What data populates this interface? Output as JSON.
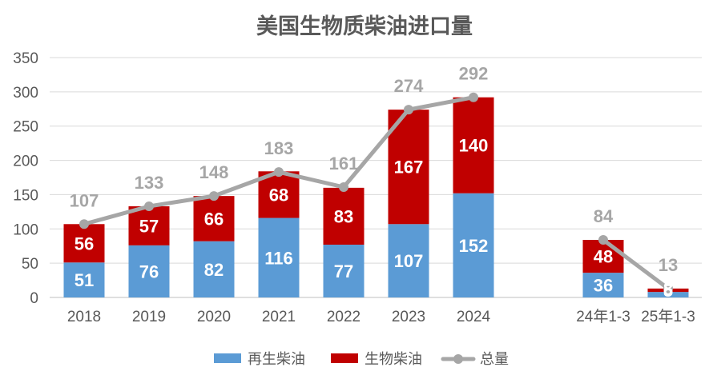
{
  "chart_data": {
    "type": "bar",
    "stacked": true,
    "title": "美国生物质柴油进口量",
    "categories": [
      "2018",
      "2019",
      "2020",
      "2021",
      "2022",
      "2023",
      "2024",
      "24年1-3",
      "25年1-3"
    ],
    "series": [
      {
        "name": "再生柴油",
        "kind": "bar",
        "color": "#5b9bd5",
        "values": [
          51,
          76,
          82,
          116,
          77,
          107,
          152,
          36,
          8
        ]
      },
      {
        "name": "生物柴油",
        "kind": "bar",
        "color": "#c00000",
        "values": [
          56,
          57,
          66,
          68,
          83,
          167,
          140,
          48,
          5
        ]
      },
      {
        "name": "总量",
        "kind": "line",
        "color": "#a6a6a6",
        "values": [
          107,
          133,
          148,
          183,
          161,
          274,
          292,
          84,
          13
        ]
      }
    ],
    "line_segments": [
      [
        0,
        6
      ],
      [
        7,
        8
      ]
    ],
    "ylim": [
      0,
      350
    ],
    "yticks": [
      0,
      50,
      100,
      150,
      200,
      250,
      300,
      350
    ],
    "grid": true,
    "legend": "bottom"
  }
}
